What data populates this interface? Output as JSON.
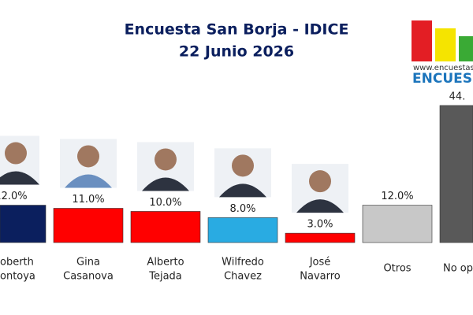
{
  "chart_data": {
    "type": "bar",
    "title": "Encuesta San Borja - IDICE",
    "subtitle": "22 Junio 2026",
    "categories": [
      [
        "oberth",
        "ontoya"
      ],
      [
        "Gina",
        "Casanova"
      ],
      [
        "Alberto",
        "Tejada"
      ],
      [
        "Wilfredo",
        "Chavez"
      ],
      [
        "José",
        "Navarro"
      ],
      [
        "Otros"
      ],
      [
        "No op"
      ]
    ],
    "values": [
      12.0,
      11.0,
      10.0,
      8.0,
      3.0,
      12.0,
      44
    ],
    "value_labels": [
      "12.0%",
      "11.0%",
      "10.0%",
      "8.0%",
      "3.0%",
      "12.0%",
      "44."
    ],
    "colors": [
      "#0b1f5e",
      "#ff0000",
      "#ff0000",
      "#29abe2",
      "#ff0000",
      "#c8c8c8",
      "#595959"
    ],
    "ylim": [
      0,
      45
    ],
    "logo": {
      "url": "www.encuestas.p",
      "name": "ENCUES"
    }
  }
}
